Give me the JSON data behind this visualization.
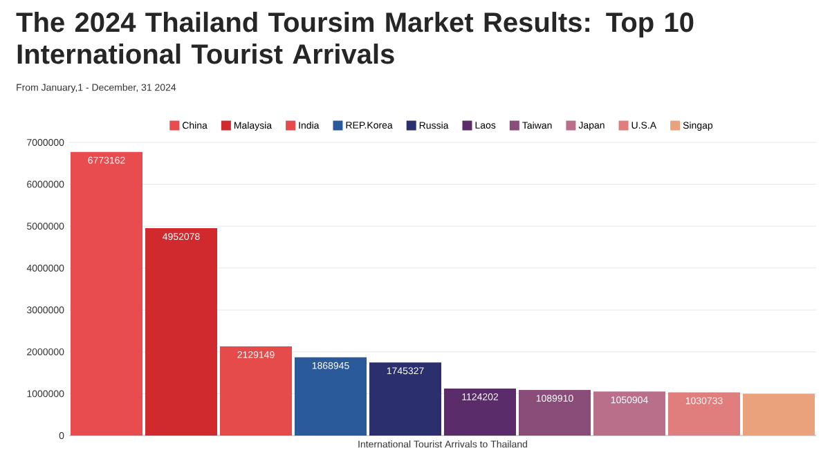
{
  "chart_data": {
    "type": "bar",
    "title": "The 2024 Thailand Toursim Market Results: Top 10 International Tourist Arrivals",
    "subtitle": "From January,1 - December, 31 2024",
    "categories": [
      "International Tourist Arrivals to Thailand"
    ],
    "series": [
      {
        "name": "China",
        "color": "#e84c4f",
        "values": [
          6773162
        ],
        "value_labels": [
          "6773162"
        ]
      },
      {
        "name": "Malaysia",
        "color": "#d0292e",
        "values": [
          4952078
        ],
        "value_labels": [
          "4952078"
        ]
      },
      {
        "name": "India",
        "color": "#e54b4b",
        "values": [
          2129149
        ],
        "value_labels": [
          "2129149"
        ]
      },
      {
        "name": "REP.Korea",
        "color": "#2b5a9a",
        "values": [
          1868945
        ],
        "value_labels": [
          "1868945"
        ]
      },
      {
        "name": "Russia",
        "color": "#2b2f6e",
        "values": [
          1745327
        ],
        "value_labels": [
          "1745327"
        ]
      },
      {
        "name": "Laos",
        "color": "#5a2d6a",
        "values": [
          1124202
        ],
        "value_labels": [
          "1124202"
        ]
      },
      {
        "name": "Taiwan",
        "color": "#8a4c78",
        "values": [
          1089910
        ],
        "value_labels": [
          "1089910"
        ]
      },
      {
        "name": "Japan",
        "color": "#b96f8a",
        "values": [
          1050904
        ],
        "value_labels": [
          "1050904"
        ]
      },
      {
        "name": "U.S.A",
        "color": "#e07d7d",
        "values": [
          1030733
        ],
        "value_labels": [
          "1030733"
        ]
      },
      {
        "name": "Singap",
        "color": "#e9a27c",
        "values": [
          1000000
        ],
        "value_labels": [
          null
        ]
      }
    ],
    "ylim": [
      0,
      7000000
    ],
    "yticks": [
      0,
      1000000,
      2000000,
      3000000,
      4000000,
      5000000,
      6000000,
      7000000
    ],
    "grid": "y",
    "legend": "top"
  }
}
